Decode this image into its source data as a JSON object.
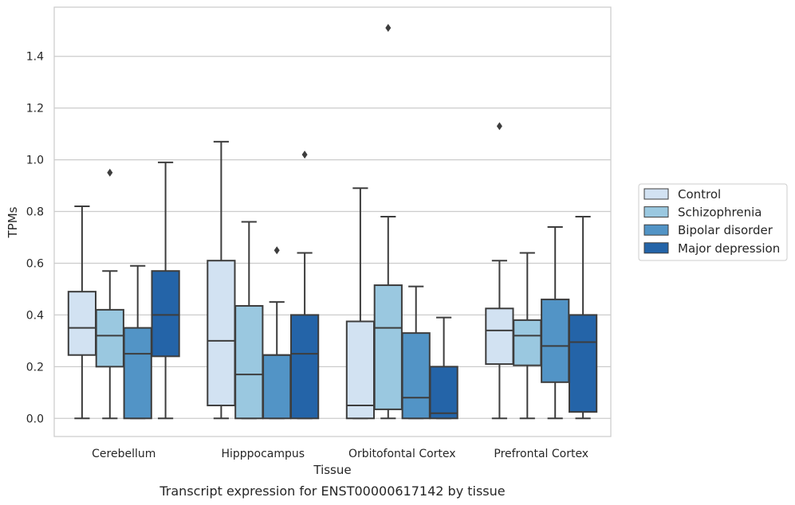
{
  "caption": "Transcript expression for ENST00000617142 by tissue",
  "chart_data": {
    "type": "box",
    "xlabel": "Tissue",
    "ylabel": "TPMs",
    "ylim": [
      -0.07,
      1.59
    ],
    "yticks": [
      "0.0",
      "0.2",
      "0.4",
      "0.6",
      "0.8",
      "1.0",
      "1.2",
      "1.4"
    ],
    "grid": "horizontal",
    "legend_position": "right",
    "categories": [
      "Cerebellum",
      "Hipppocampus",
      "Orbitofontal Cortex",
      "Prefrontal Cortex"
    ],
    "series": [
      {
        "name": "Control",
        "color": "#d2e2f2",
        "boxes": [
          {
            "low": 0.0,
            "q1": 0.245,
            "median": 0.35,
            "q3": 0.49,
            "high": 0.82,
            "outliers": []
          },
          {
            "low": 0.0,
            "q1": 0.05,
            "median": 0.3,
            "q3": 0.61,
            "high": 1.07,
            "outliers": []
          },
          {
            "low": 0.0,
            "q1": 0.0,
            "median": 0.05,
            "q3": 0.375,
            "high": 0.89,
            "outliers": []
          },
          {
            "low": 0.0,
            "q1": 0.21,
            "median": 0.34,
            "q3": 0.425,
            "high": 0.61,
            "outliers": [
              1.13
            ]
          }
        ]
      },
      {
        "name": "Schizophrenia",
        "color": "#9ac8e0",
        "boxes": [
          {
            "low": 0.0,
            "q1": 0.2,
            "median": 0.32,
            "q3": 0.42,
            "high": 0.57,
            "outliers": [
              0.95
            ]
          },
          {
            "low": 0.0,
            "q1": 0.0,
            "median": 0.17,
            "q3": 0.435,
            "high": 0.76,
            "outliers": []
          },
          {
            "low": 0.0,
            "q1": 0.035,
            "median": 0.35,
            "q3": 0.515,
            "high": 0.78,
            "outliers": [
              1.51
            ]
          },
          {
            "low": 0.0,
            "q1": 0.205,
            "median": 0.32,
            "q3": 0.38,
            "high": 0.64,
            "outliers": []
          }
        ]
      },
      {
        "name": "Bipolar disorder",
        "color": "#5294c6",
        "boxes": [
          {
            "low": 0.0,
            "q1": 0.0,
            "median": 0.25,
            "q3": 0.35,
            "high": 0.59,
            "outliers": []
          },
          {
            "low": 0.0,
            "q1": 0.0,
            "median": 0.245,
            "q3": 0.245,
            "high": 0.45,
            "outliers": [
              0.65
            ]
          },
          {
            "low": 0.0,
            "q1": 0.0,
            "median": 0.08,
            "q3": 0.33,
            "high": 0.51,
            "outliers": []
          },
          {
            "low": 0.0,
            "q1": 0.14,
            "median": 0.28,
            "q3": 0.46,
            "high": 0.74,
            "outliers": []
          }
        ]
      },
      {
        "name": "Major depression",
        "color": "#2464a8",
        "boxes": [
          {
            "low": 0.0,
            "q1": 0.24,
            "median": 0.4,
            "q3": 0.57,
            "high": 0.99,
            "outliers": []
          },
          {
            "low": 0.0,
            "q1": 0.0,
            "median": 0.25,
            "q3": 0.4,
            "high": 0.64,
            "outliers": [
              1.02
            ]
          },
          {
            "low": 0.0,
            "q1": 0.0,
            "median": 0.02,
            "q3": 0.2,
            "high": 0.39,
            "outliers": []
          },
          {
            "low": 0.0,
            "q1": 0.025,
            "median": 0.295,
            "q3": 0.4,
            "high": 0.78,
            "outliers": []
          }
        ]
      }
    ]
  }
}
